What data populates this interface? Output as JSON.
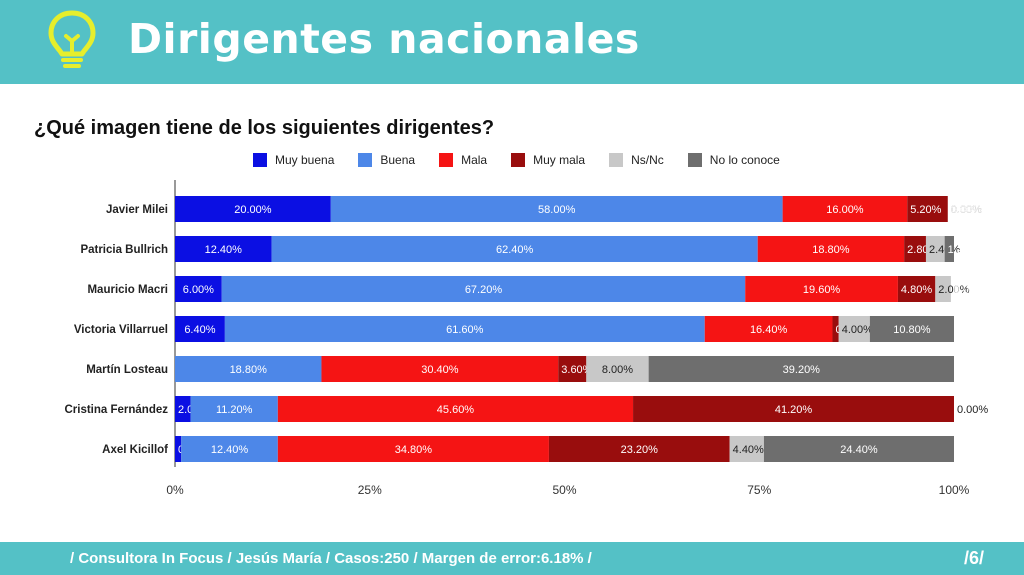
{
  "header": {
    "title": "Dirigentes nacionales",
    "icon": "lightbulb-icon",
    "color": "#54c1c6"
  },
  "footer": {
    "text": "/ Consultora In Focus / Jesús María / Casos:250 / Margen de error:6.18% /",
    "page": "/6/"
  },
  "chart_data": {
    "type": "bar",
    "orientation": "horizontal",
    "stacked": true,
    "title": "¿Qué imagen tiene de los siguientes dirigentes?",
    "legend_position": "top",
    "categories": [
      "Javier Milei",
      "Patricia Bullrich",
      "Mauricio Macri",
      "Victoria Villarruel",
      "Martín Losteau",
      "Cristina Fernández",
      "Axel Kicillof"
    ],
    "series": [
      {
        "name": "Muy buena",
        "color": "#0b0fe3",
        "values": [
          20.0,
          12.4,
          6.0,
          6.4,
          0.0,
          2.0,
          0.8
        ]
      },
      {
        "name": "Buena",
        "color": "#4d87e8",
        "values": [
          58.0,
          62.4,
          67.2,
          61.6,
          18.8,
          11.2,
          12.4
        ]
      },
      {
        "name": "Mala",
        "color": "#f51414",
        "values": [
          16.0,
          18.8,
          19.6,
          16.4,
          30.4,
          45.6,
          34.8
        ]
      },
      {
        "name": "Muy mala",
        "color": "#990d0d",
        "values": [
          5.2,
          2.8,
          4.8,
          0.8,
          3.6,
          41.2,
          23.2
        ]
      },
      {
        "name": "Ns/Nc",
        "color": "#c8c8c8",
        "values": [
          0.0,
          2.4,
          2.0,
          4.0,
          8.0,
          0.0,
          4.4
        ]
      },
      {
        "name": "No lo conoce",
        "color": "#6e6e6e",
        "values": [
          0.0,
          1.2,
          0.0,
          10.8,
          39.2,
          0.0,
          24.4
        ]
      }
    ],
    "xlim": [
      0,
      100
    ],
    "xticks": [
      "0%",
      "25%",
      "50%",
      "75%",
      "100%"
    ],
    "grid": false
  }
}
